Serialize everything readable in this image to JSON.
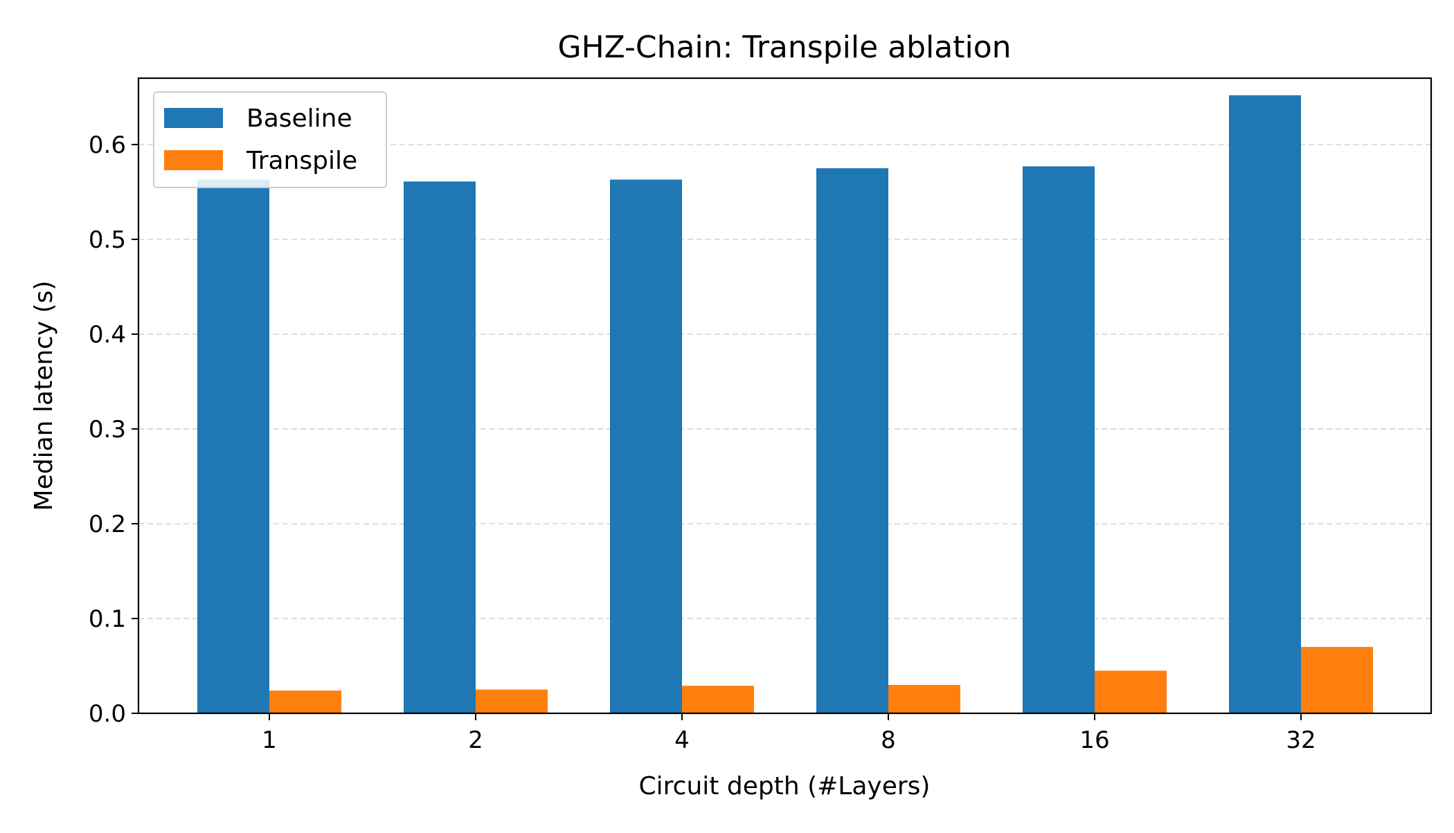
{
  "chart_data": {
    "type": "bar",
    "title": "GHZ-Chain: Transpile ablation",
    "xlabel": "Circuit depth (#Layers)",
    "ylabel": "Median latency (s)",
    "categories": [
      "1",
      "2",
      "4",
      "8",
      "16",
      "32"
    ],
    "series": [
      {
        "name": "Baseline",
        "color": "#1f77b4",
        "values": [
          0.563,
          0.561,
          0.563,
          0.575,
          0.577,
          0.652
        ]
      },
      {
        "name": "Transpile",
        "color": "#ff7f0e",
        "values": [
          0.024,
          0.025,
          0.029,
          0.03,
          0.045,
          0.07
        ]
      }
    ],
    "ylim": [
      0.0,
      0.67
    ],
    "yticks": [
      "0.0",
      "0.1",
      "0.2",
      "0.3",
      "0.4",
      "0.5",
      "0.6"
    ],
    "grid": "horizontal dashed",
    "legend_position": "top-left"
  }
}
